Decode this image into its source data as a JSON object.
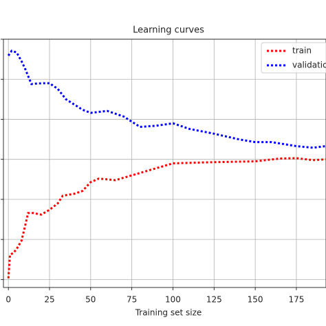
{
  "chart_data": {
    "type": "line",
    "title": "Learning curves",
    "x_label": "Training set size",
    "xlim": [
      -3,
      193
    ],
    "ylim": [
      -0.2,
      6.0
    ],
    "xticks": [
      0,
      25,
      50,
      75,
      100,
      125,
      150,
      175
    ],
    "yticks": [
      0,
      1,
      2,
      3,
      4,
      5,
      6
    ],
    "grid": true,
    "legend": "upper right",
    "series": [
      {
        "name": "train",
        "color": "#ff0000",
        "x": [
          0,
          1,
          3,
          5,
          8,
          10,
          12,
          15,
          20,
          25,
          30,
          33,
          40,
          45,
          50,
          55,
          65,
          75,
          85,
          100,
          125,
          150,
          165,
          175,
          185,
          193
        ],
        "values": [
          0.03,
          0.62,
          0.66,
          0.76,
          0.97,
          1.31,
          1.66,
          1.66,
          1.62,
          1.74,
          1.9,
          2.09,
          2.14,
          2.21,
          2.43,
          2.52,
          2.48,
          2.6,
          2.72,
          2.9,
          2.93,
          2.95,
          3.02,
          3.03,
          2.98,
          3.0
        ]
      },
      {
        "name": "validation",
        "color": "#0000ff",
        "x": [
          0,
          2,
          5,
          8,
          10,
          14,
          20,
          25,
          30,
          35,
          45,
          50,
          60,
          70,
          80,
          90,
          100,
          110,
          125,
          140,
          150,
          160,
          175,
          185,
          193
        ],
        "values": [
          5.59,
          5.71,
          5.67,
          5.45,
          5.28,
          4.88,
          4.9,
          4.9,
          4.76,
          4.5,
          4.24,
          4.16,
          4.21,
          4.07,
          3.81,
          3.84,
          3.9,
          3.76,
          3.64,
          3.5,
          3.43,
          3.43,
          3.33,
          3.29,
          3.33
        ]
      }
    ]
  }
}
